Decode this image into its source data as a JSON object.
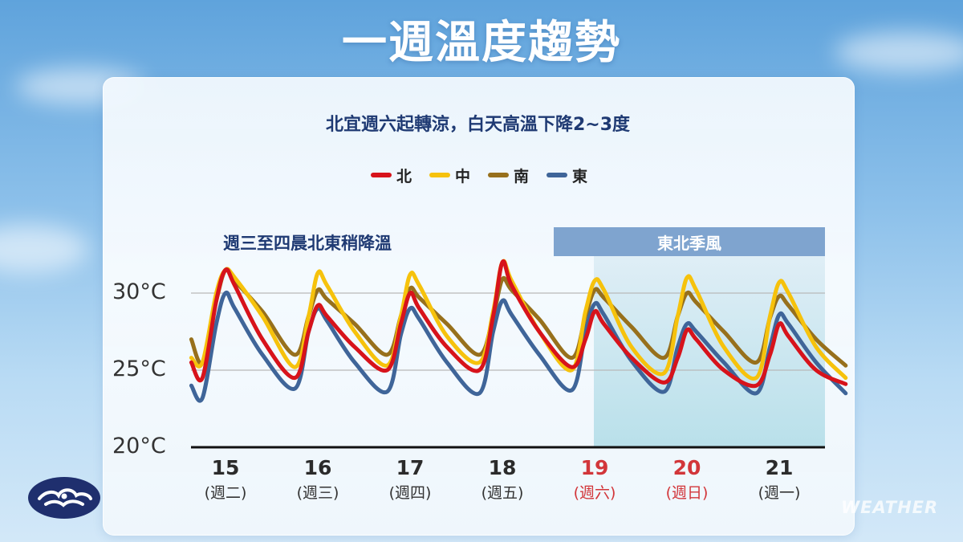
{
  "title": "一週溫度趨勢",
  "subtitle": "北宜週六起轉涼，白天高溫下降2~3度",
  "annotation_left": "週三至四晨北東稍降溫",
  "annotation_banner": "東北季風",
  "watermark": "WEATHER",
  "colors": {
    "north": "#d7131b",
    "central": "#f6c20c",
    "south": "#97701c",
    "east": "#3f6599",
    "banner": "#7fa4cf",
    "weekend": "#d2363a"
  },
  "chart_data": {
    "type": "line",
    "title": "北宜週六起轉涼，白天高溫下降2~3度",
    "xlabel": "",
    "ylabel": "",
    "ylim": [
      20,
      32
    ],
    "yticks": [
      "20°C",
      "25°C",
      "30°C"
    ],
    "grid": true,
    "legend_position": "top-center",
    "highlight_region": {
      "label": "東北季風",
      "x_start": 4.0,
      "x_end": 6.72
    },
    "categories": [
      {
        "day": "15",
        "weekday": "(週二)",
        "weekend": false
      },
      {
        "day": "16",
        "weekday": "(週三)",
        "weekend": false
      },
      {
        "day": "17",
        "weekday": "(週四)",
        "weekend": false
      },
      {
        "day": "18",
        "weekday": "(週五)",
        "weekend": false
      },
      {
        "day": "19",
        "weekday": "(週六)",
        "weekend": true
      },
      {
        "day": "20",
        "weekday": "(週日)",
        "weekend": true
      },
      {
        "day": "21",
        "weekday": "(週一)",
        "weekend": false
      }
    ],
    "x": [
      -0.37,
      -0.25,
      -0.1,
      0.0,
      0.1,
      0.4,
      0.75,
      0.9,
      1.0,
      1.1,
      1.4,
      1.75,
      1.9,
      2.0,
      2.1,
      2.4,
      2.75,
      2.9,
      3.0,
      3.1,
      3.4,
      3.75,
      3.9,
      4.0,
      4.1,
      4.4,
      4.75,
      4.9,
      5.0,
      5.1,
      5.4,
      5.75,
      5.9,
      6.0,
      6.1,
      6.4,
      6.72
    ],
    "series": [
      {
        "name": "北",
        "key": "north",
        "values": [
          25.5,
          24.5,
          29.5,
          31.5,
          30.5,
          27.0,
          24.5,
          27.5,
          29.2,
          28.5,
          26.5,
          25.0,
          28.0,
          30.0,
          29.0,
          26.5,
          25.0,
          28.5,
          32.0,
          30.5,
          27.5,
          25.2,
          27.0,
          28.8,
          28.0,
          25.8,
          24.2,
          25.8,
          27.6,
          27.0,
          25.0,
          24.0,
          26.0,
          28.0,
          27.2,
          25.0,
          24.1
        ]
      },
      {
        "name": "中",
        "key": "central",
        "values": [
          25.8,
          25.5,
          30.0,
          31.5,
          31.0,
          28.5,
          25.2,
          28.5,
          31.3,
          30.5,
          27.5,
          25.3,
          28.5,
          31.2,
          30.5,
          27.2,
          25.5,
          28.8,
          32.0,
          30.8,
          27.5,
          25.0,
          28.8,
          30.8,
          30.2,
          26.5,
          24.8,
          28.5,
          31.0,
          30.2,
          26.5,
          24.5,
          28.5,
          30.7,
          30.0,
          26.5,
          24.5
        ]
      },
      {
        "name": "南",
        "key": "south",
        "values": [
          27.0,
          25.5,
          29.5,
          31.5,
          30.8,
          28.8,
          26.0,
          28.5,
          30.2,
          29.6,
          28.0,
          26.0,
          28.5,
          30.3,
          29.7,
          28.0,
          26.0,
          28.5,
          30.9,
          30.2,
          28.3,
          25.8,
          28.5,
          30.2,
          29.7,
          27.8,
          25.8,
          28.5,
          30.0,
          29.4,
          27.5,
          25.5,
          28.4,
          29.8,
          29.2,
          27.0,
          25.3
        ]
      },
      {
        "name": "東",
        "key": "east",
        "values": [
          24.0,
          23.2,
          28.0,
          30.0,
          29.0,
          26.0,
          23.8,
          27.5,
          29.0,
          28.2,
          25.5,
          23.6,
          27.3,
          29.0,
          28.3,
          25.5,
          23.5,
          27.5,
          29.5,
          28.6,
          26.0,
          23.7,
          27.5,
          29.3,
          28.6,
          25.6,
          23.6,
          26.5,
          28.0,
          27.5,
          25.5,
          23.5,
          26.5,
          28.6,
          28.0,
          25.5,
          23.5
        ]
      }
    ]
  }
}
